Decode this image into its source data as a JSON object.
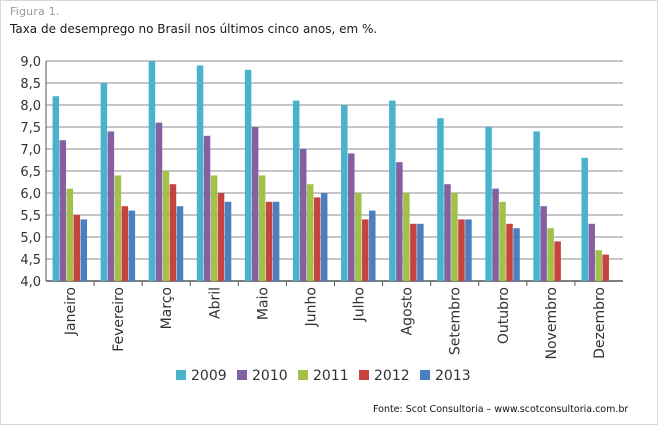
{
  "figure_label": "Figura 1.",
  "title": "Taxa de desemprego no Brasil nos últimos cinco anos, em %.",
  "source": "Fonte: Scot Consultoria – www.scotconsultoria.com.br",
  "colors": {
    "2009": "#4ab3cc",
    "2010": "#8160a4",
    "2011": "#a3c04a",
    "2012": "#c7433f",
    "2013": "#4a80c2",
    "axis": "#555555",
    "grid": "#8c8c8c"
  },
  "chart_data": {
    "type": "bar",
    "title": "Taxa de desemprego no Brasil nos últimos cinco anos, em %.",
    "xlabel": "",
    "ylabel": "",
    "ylim": [
      4.0,
      9.0
    ],
    "yticks": [
      "4,0",
      "4,5",
      "5,0",
      "5,5",
      "6,0",
      "6,5",
      "7,0",
      "7,5",
      "8,0",
      "8,5",
      "9,0"
    ],
    "grid": true,
    "legend": "bottom",
    "categories": [
      "Janeiro",
      "Fevereiro",
      "Março",
      "Abril",
      "Maio",
      "Junho",
      "Julho",
      "Agosto",
      "Setembro",
      "Outubro",
      "Novembro",
      "Dezembro"
    ],
    "series": [
      {
        "name": "2009",
        "values": [
          8.2,
          8.5,
          9.0,
          8.9,
          8.8,
          8.1,
          8.0,
          8.1,
          7.7,
          7.5,
          7.4,
          6.8
        ]
      },
      {
        "name": "2010",
        "values": [
          7.2,
          7.4,
          7.6,
          7.3,
          7.5,
          7.0,
          6.9,
          6.7,
          6.2,
          6.1,
          5.7,
          5.3
        ]
      },
      {
        "name": "2011",
        "values": [
          6.1,
          6.4,
          6.5,
          6.4,
          6.4,
          6.2,
          6.0,
          6.0,
          6.0,
          5.8,
          5.2,
          4.7
        ]
      },
      {
        "name": "2012",
        "values": [
          5.5,
          5.7,
          6.2,
          6.0,
          5.8,
          5.9,
          5.4,
          5.3,
          5.4,
          5.3,
          4.9,
          4.6
        ]
      },
      {
        "name": "2013",
        "values": [
          5.4,
          5.6,
          5.7,
          5.8,
          5.8,
          6.0,
          5.6,
          5.3,
          5.4,
          5.2,
          null,
          null
        ]
      }
    ]
  }
}
